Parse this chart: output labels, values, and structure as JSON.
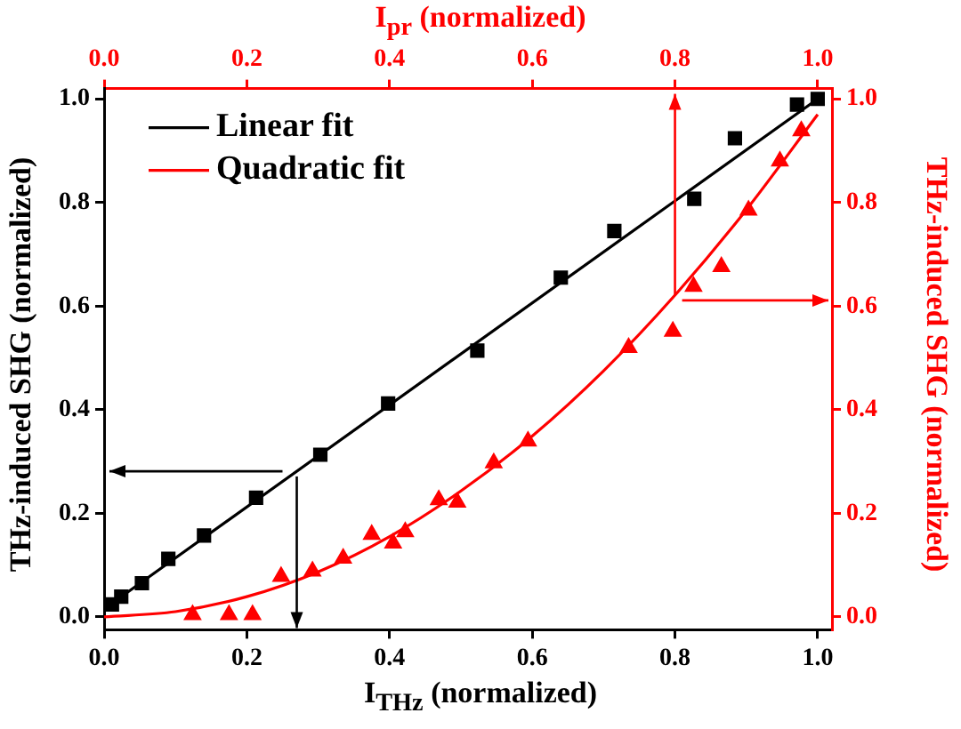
{
  "chart_data": {
    "type": "scatter",
    "xlabel": "I$_{THz}$ (normalized)",
    "x2label": "I$_{pr}$ (normalized)",
    "ylabel": "THz-induced SHG (normalized)",
    "y2label": "THz-induced SHG (normalized)",
    "xlim": [
      0,
      1.02
    ],
    "xticks": [
      {
        "value": 0,
        "label": "0.0"
      },
      0.2,
      0.4,
      0.6,
      0.8,
      {
        "value": 1,
        "label": "1.0"
      }
    ],
    "x2lim": [
      0,
      1.02
    ],
    "x2ticks": [
      {
        "value": 0,
        "label": "0.0"
      },
      0.2,
      0.4,
      0.6,
      0.8,
      {
        "value": 1,
        "label": "1.0"
      }
    ],
    "ylim": [
      -0.025,
      1.02
    ],
    "yticks": [
      {
        "value": 0,
        "label": "0.0"
      },
      0.2,
      0.4,
      0.6,
      0.8,
      {
        "value": 1,
        "label": "1.0"
      }
    ],
    "y2lim": [
      -0.025,
      1.02
    ],
    "y2ticks": [
      {
        "value": 0,
        "label": "0.0"
      },
      0.2,
      0.4,
      0.6,
      0.8,
      {
        "value": 1,
        "label": "1.0"
      }
    ],
    "grid": false,
    "legend": "top left",
    "series": [
      {
        "type": "scatter",
        "marker": "square",
        "color": "#000000",
        "x": [
          0.011,
          0.024,
          0.053,
          0.09,
          0.14,
          0.213,
          0.303,
          0.398,
          0.523,
          0.64,
          0.715,
          0.827,
          0.884,
          0.971,
          1.0
        ],
        "values": [
          0.024,
          0.039,
          0.065,
          0.112,
          0.157,
          0.23,
          0.313,
          0.412,
          0.514,
          0.655,
          0.745,
          0.807,
          0.924,
          0.989,
          1.0
        ]
      },
      {
        "type": "line",
        "name": "Linear fit",
        "marker": "none",
        "color": "#000000",
        "x": [
          0.01,
          1.0
        ],
        "values": [
          0.025,
          1.0
        ]
      },
      {
        "type": "scatter",
        "marker": "triangle",
        "color": "#ff0000",
        "axis": "y2",
        "x": [
          0.124,
          0.175,
          0.208,
          0.248,
          0.292,
          0.335,
          0.375,
          0.405,
          0.422,
          0.469,
          0.495,
          0.546,
          0.594,
          0.735,
          0.797,
          0.826,
          0.865,
          0.903,
          0.947,
          0.977
        ],
        "values": [
          0.004,
          0.004,
          0.004,
          0.078,
          0.088,
          0.113,
          0.159,
          0.142,
          0.164,
          0.226,
          0.221,
          0.297,
          0.339,
          0.52,
          0.551,
          0.638,
          0.676,
          0.785,
          0.88,
          0.938
        ]
      },
      {
        "type": "line",
        "name": "Quadratic fit",
        "marker": "none",
        "color": "#ff0000",
        "axis": "y2",
        "x": [
          0,
          0.1,
          0.2,
          0.3,
          0.4,
          0.5,
          0.6,
          0.7,
          0.8,
          0.9,
          1.0
        ],
        "values": [
          0,
          0.01,
          0.039,
          0.087,
          0.155,
          0.243,
          0.349,
          0.475,
          0.621,
          0.786,
          0.97
        ]
      }
    ]
  }
}
